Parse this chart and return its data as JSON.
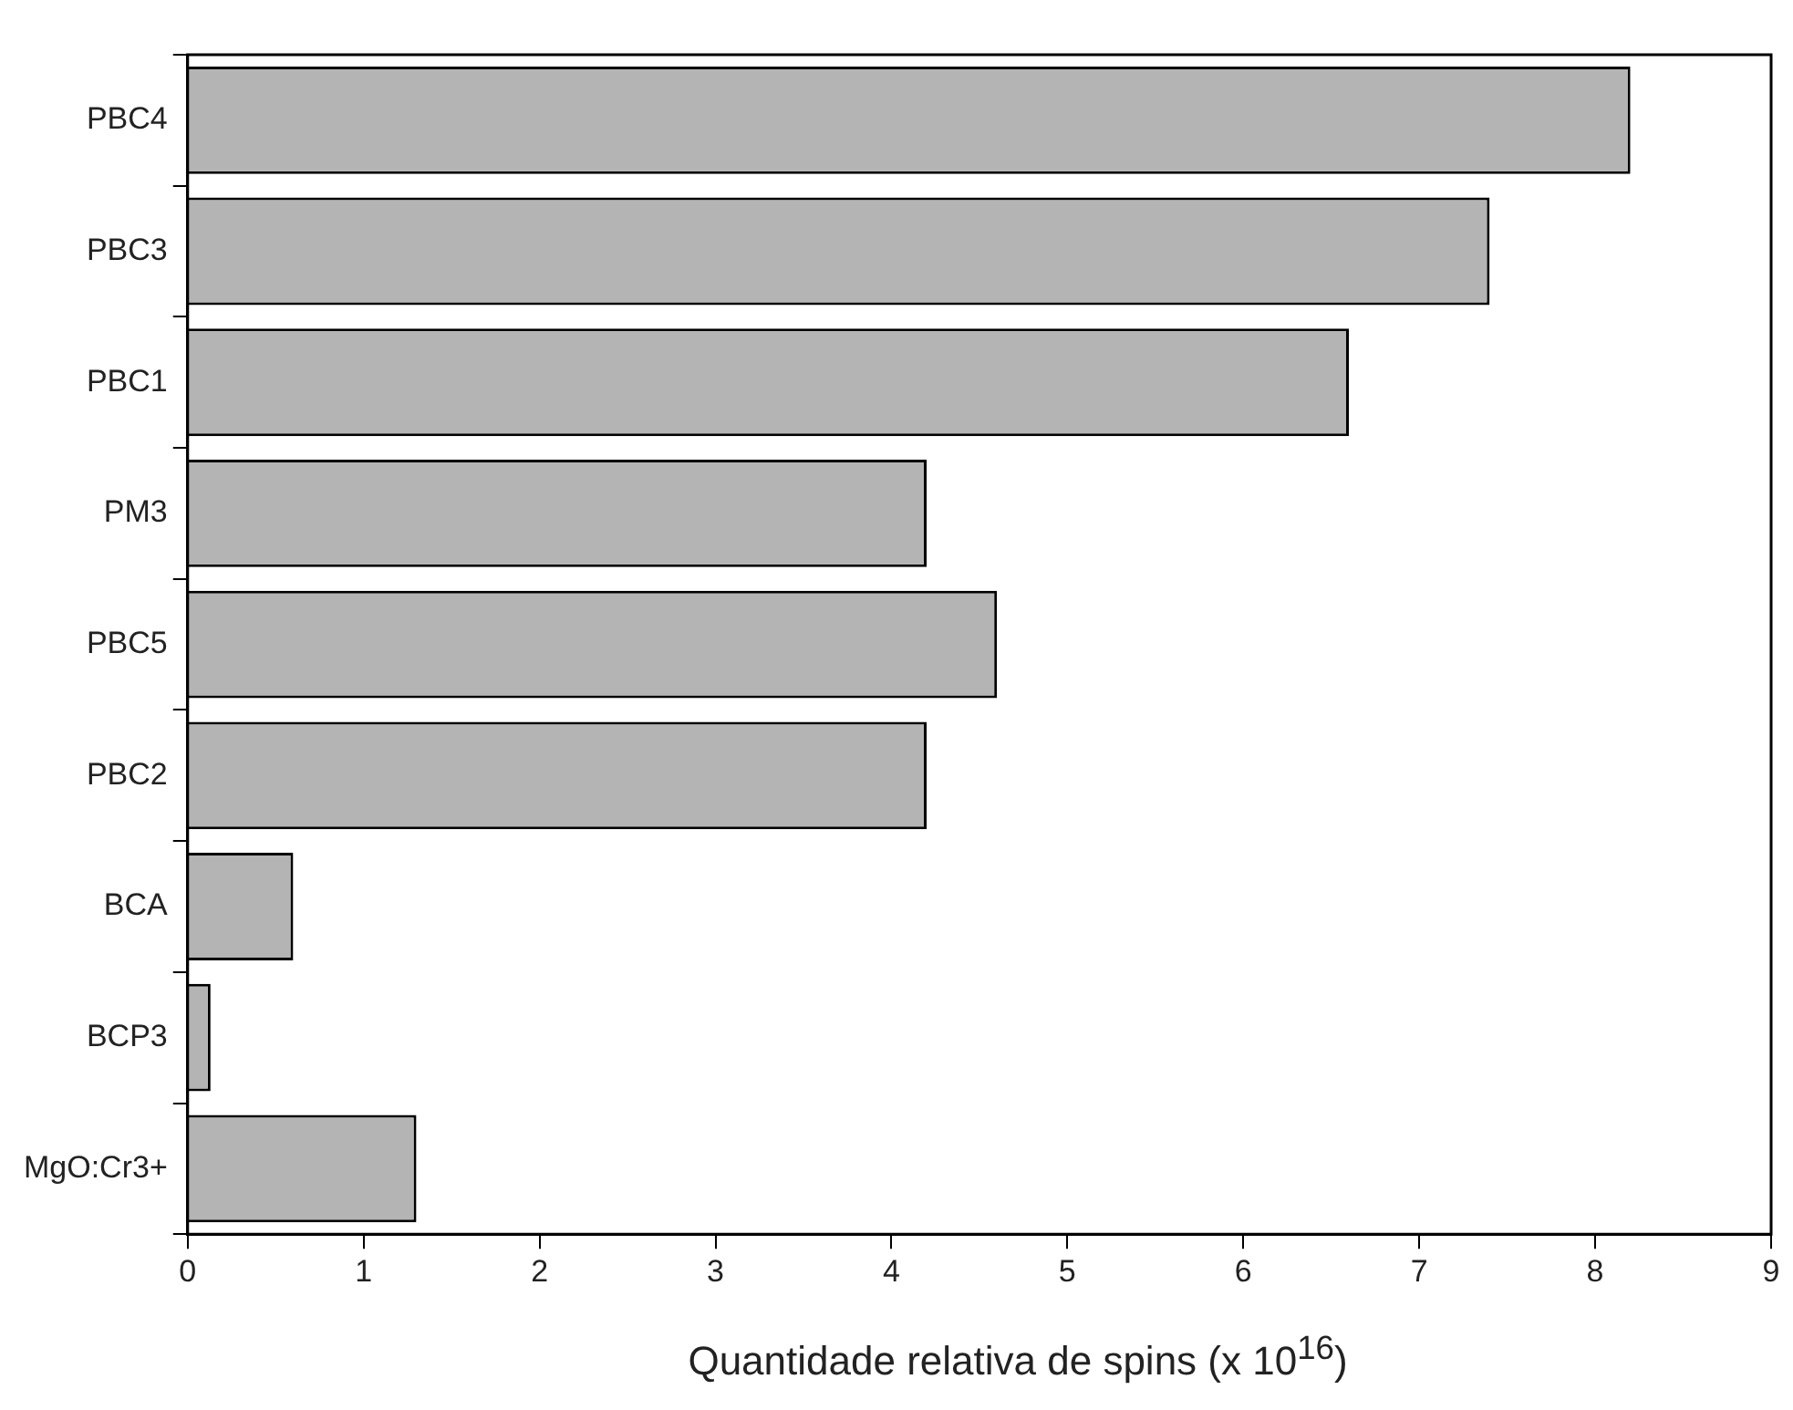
{
  "chart_data": {
    "type": "bar",
    "orientation": "horizontal",
    "xlabel": "Quantidade relativa de spins (x 10$^{16}$)",
    "categories": [
      "PBC4",
      "PBC3",
      "PBC1",
      "PM3",
      "PBC5",
      "PBC2",
      "BCA",
      "BCP3",
      "MgO:Cr3+"
    ],
    "values": [
      8.2,
      7.4,
      6.6,
      4.2,
      4.6,
      4.2,
      0.6,
      0.13,
      1.3
    ],
    "color": "#b4b4b4",
    "xlim": [
      0,
      9
    ],
    "xticks": [
      0,
      1,
      2,
      3,
      4,
      5,
      6,
      7,
      8,
      9
    ],
    "grid": false,
    "legend": false
  }
}
